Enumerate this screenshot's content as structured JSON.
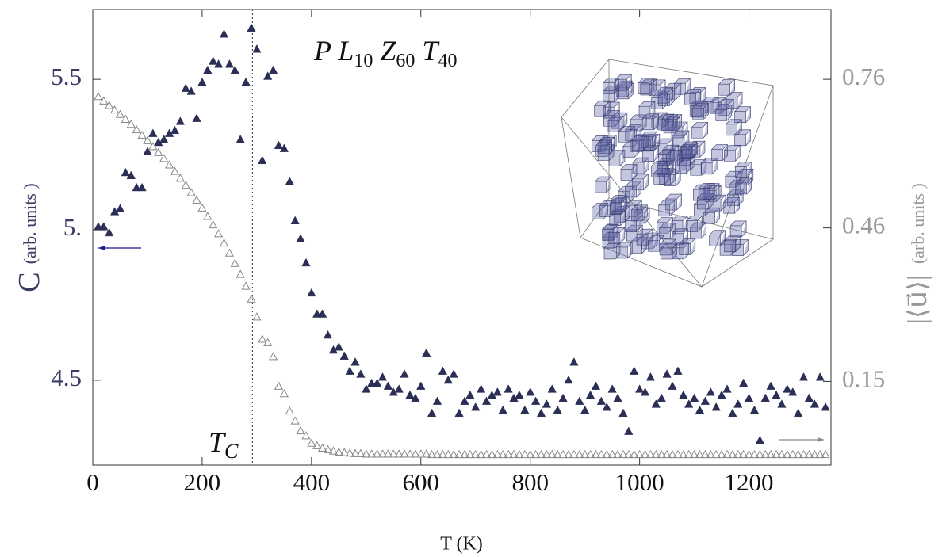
{
  "chart_data": {
    "type": "scatter",
    "title": [
      [
        "P L",
        "10"
      ],
      [
        " Z",
        "60"
      ],
      [
        " T",
        "40"
      ]
    ],
    "xlabel": "T (K)",
    "ylabel": [
      "C",
      "(arb. units )"
    ],
    "y2label": [
      "|⟨u⃗⟩|",
      "(arb. units )"
    ],
    "tc_label": [
      "T",
      "C"
    ],
    "tc_line": 292,
    "xlim": [
      0,
      1350
    ],
    "xticks": [
      0,
      200,
      400,
      600,
      800,
      1000,
      1200
    ],
    "ylim": [
      4.218,
      5.732
    ],
    "yticks": [
      {
        "value": 5.0,
        "label": "5."
      },
      4.5,
      5.5
    ],
    "y2lim": [
      -0.019,
      0.901
    ],
    "y2ticks": [
      0.15,
      0.46,
      0.76
    ],
    "x": [
      10,
      20,
      30,
      40,
      50,
      60,
      70,
      80,
      90,
      100,
      110,
      120,
      130,
      140,
      150,
      160,
      170,
      180,
      190,
      200,
      210,
      220,
      230,
      240,
      250,
      260,
      270,
      280,
      290,
      300,
      310,
      320,
      330,
      340,
      350,
      360,
      370,
      380,
      390,
      400,
      410,
      420,
      430,
      440,
      450,
      460,
      470,
      480,
      490,
      500,
      510,
      520,
      530,
      540,
      550,
      560,
      570,
      580,
      590,
      600,
      610,
      620,
      630,
      640,
      650,
      660,
      670,
      680,
      690,
      700,
      710,
      720,
      730,
      740,
      750,
      760,
      770,
      780,
      790,
      800,
      810,
      820,
      830,
      840,
      850,
      860,
      870,
      880,
      890,
      900,
      910,
      920,
      930,
      940,
      950,
      960,
      970,
      980,
      990,
      1000,
      1010,
      1020,
      1030,
      1040,
      1050,
      1060,
      1070,
      1080,
      1090,
      1100,
      1110,
      1120,
      1130,
      1140,
      1150,
      1160,
      1170,
      1180,
      1190,
      1200,
      1210,
      1220,
      1230,
      1240,
      1250,
      1260,
      1270,
      1280,
      1290,
      1300,
      1310,
      1320,
      1330,
      1340
    ],
    "series": [
      {
        "name": "C",
        "color": "#2b2f55",
        "marker": "filled-triangle",
        "axis": "y",
        "values": [
          5.01,
          5.01,
          4.99,
          5.06,
          5.07,
          5.19,
          5.18,
          5.14,
          5.14,
          5.26,
          5.32,
          5.29,
          5.3,
          5.32,
          5.33,
          5.36,
          5.47,
          5.46,
          5.37,
          5.49,
          5.53,
          5.56,
          5.55,
          5.65,
          5.55,
          5.53,
          5.3,
          5.49,
          5.67,
          5.6,
          5.23,
          5.51,
          5.53,
          5.28,
          5.27,
          5.16,
          5.03,
          4.97,
          4.89,
          4.79,
          4.72,
          4.72,
          4.65,
          4.6,
          4.61,
          4.58,
          4.53,
          4.56,
          4.52,
          4.47,
          4.49,
          4.49,
          4.51,
          4.48,
          4.46,
          4.47,
          4.52,
          4.45,
          4.44,
          4.48,
          4.59,
          4.39,
          4.43,
          4.53,
          4.5,
          4.52,
          4.39,
          4.43,
          4.45,
          4.41,
          4.47,
          4.43,
          4.45,
          4.46,
          4.4,
          4.47,
          4.44,
          4.45,
          4.4,
          4.46,
          4.43,
          4.39,
          4.42,
          4.47,
          4.4,
          4.44,
          4.5,
          4.56,
          4.43,
          4.4,
          4.45,
          4.48,
          4.43,
          4.41,
          4.47,
          4.44,
          4.39,
          4.33,
          4.53,
          4.47,
          4.46,
          4.51,
          4.42,
          4.44,
          4.52,
          4.48,
          4.53,
          4.45,
          4.42,
          4.44,
          4.4,
          4.43,
          4.46,
          4.41,
          4.45,
          4.47,
          4.39,
          4.42,
          4.49,
          4.44,
          4.4,
          4.3,
          4.44,
          4.48,
          4.45,
          4.42,
          4.47,
          4.46,
          4.39,
          4.51,
          4.44,
          4.42,
          4.51,
          4.41
        ]
      },
      {
        "name": "u",
        "color": "#888888",
        "marker": "open-triangle",
        "axis": "y2",
        "values": [
          0.725,
          0.716,
          0.707,
          0.698,
          0.689,
          0.679,
          0.669,
          0.658,
          0.647,
          0.636,
          0.624,
          0.612,
          0.6,
          0.587,
          0.574,
          0.56,
          0.546,
          0.531,
          0.516,
          0.5,
          0.483,
          0.466,
          0.448,
          0.429,
          0.409,
          0.388,
          0.366,
          0.342,
          0.316,
          0.28,
          0.235,
          0.228,
          0.2,
          0.14,
          0.125,
          0.09,
          0.07,
          0.05,
          0.04,
          0.025,
          0.02,
          0.015,
          0.012,
          0.009,
          0.007,
          0.006,
          0.005,
          0.004,
          0.004,
          0.003,
          0.003,
          0.003,
          0.003,
          0.003,
          0.003,
          0.003,
          0.003,
          0.003,
          0.003,
          0.003,
          0.003,
          0.002,
          0.002,
          0.002,
          0.002,
          0.002,
          0.002,
          0.002,
          0.002,
          0.002,
          0.002,
          0.002,
          0.002,
          0.002,
          0.002,
          0.002,
          0.002,
          0.002,
          0.002,
          0.002,
          0.002,
          0.002,
          0.002,
          0.002,
          0.002,
          0.002,
          0.002,
          0.002,
          0.002,
          0.002,
          0.002,
          0.002,
          0.002,
          0.002,
          0.002,
          0.002,
          0.002,
          0.002,
          0.002,
          0.002,
          0.002,
          0.002,
          0.002,
          0.002,
          0.002,
          0.002,
          0.002,
          0.002,
          0.002,
          0.002,
          0.002,
          0.002,
          0.002,
          0.002,
          0.002,
          0.002,
          0.002,
          0.002,
          0.002,
          0.002,
          0.002,
          0.002,
          0.002,
          0.002,
          0.002,
          0.002,
          0.002,
          0.002,
          0.002,
          0.002,
          0.002,
          0.002,
          0.002,
          0.002
        ]
      }
    ]
  }
}
